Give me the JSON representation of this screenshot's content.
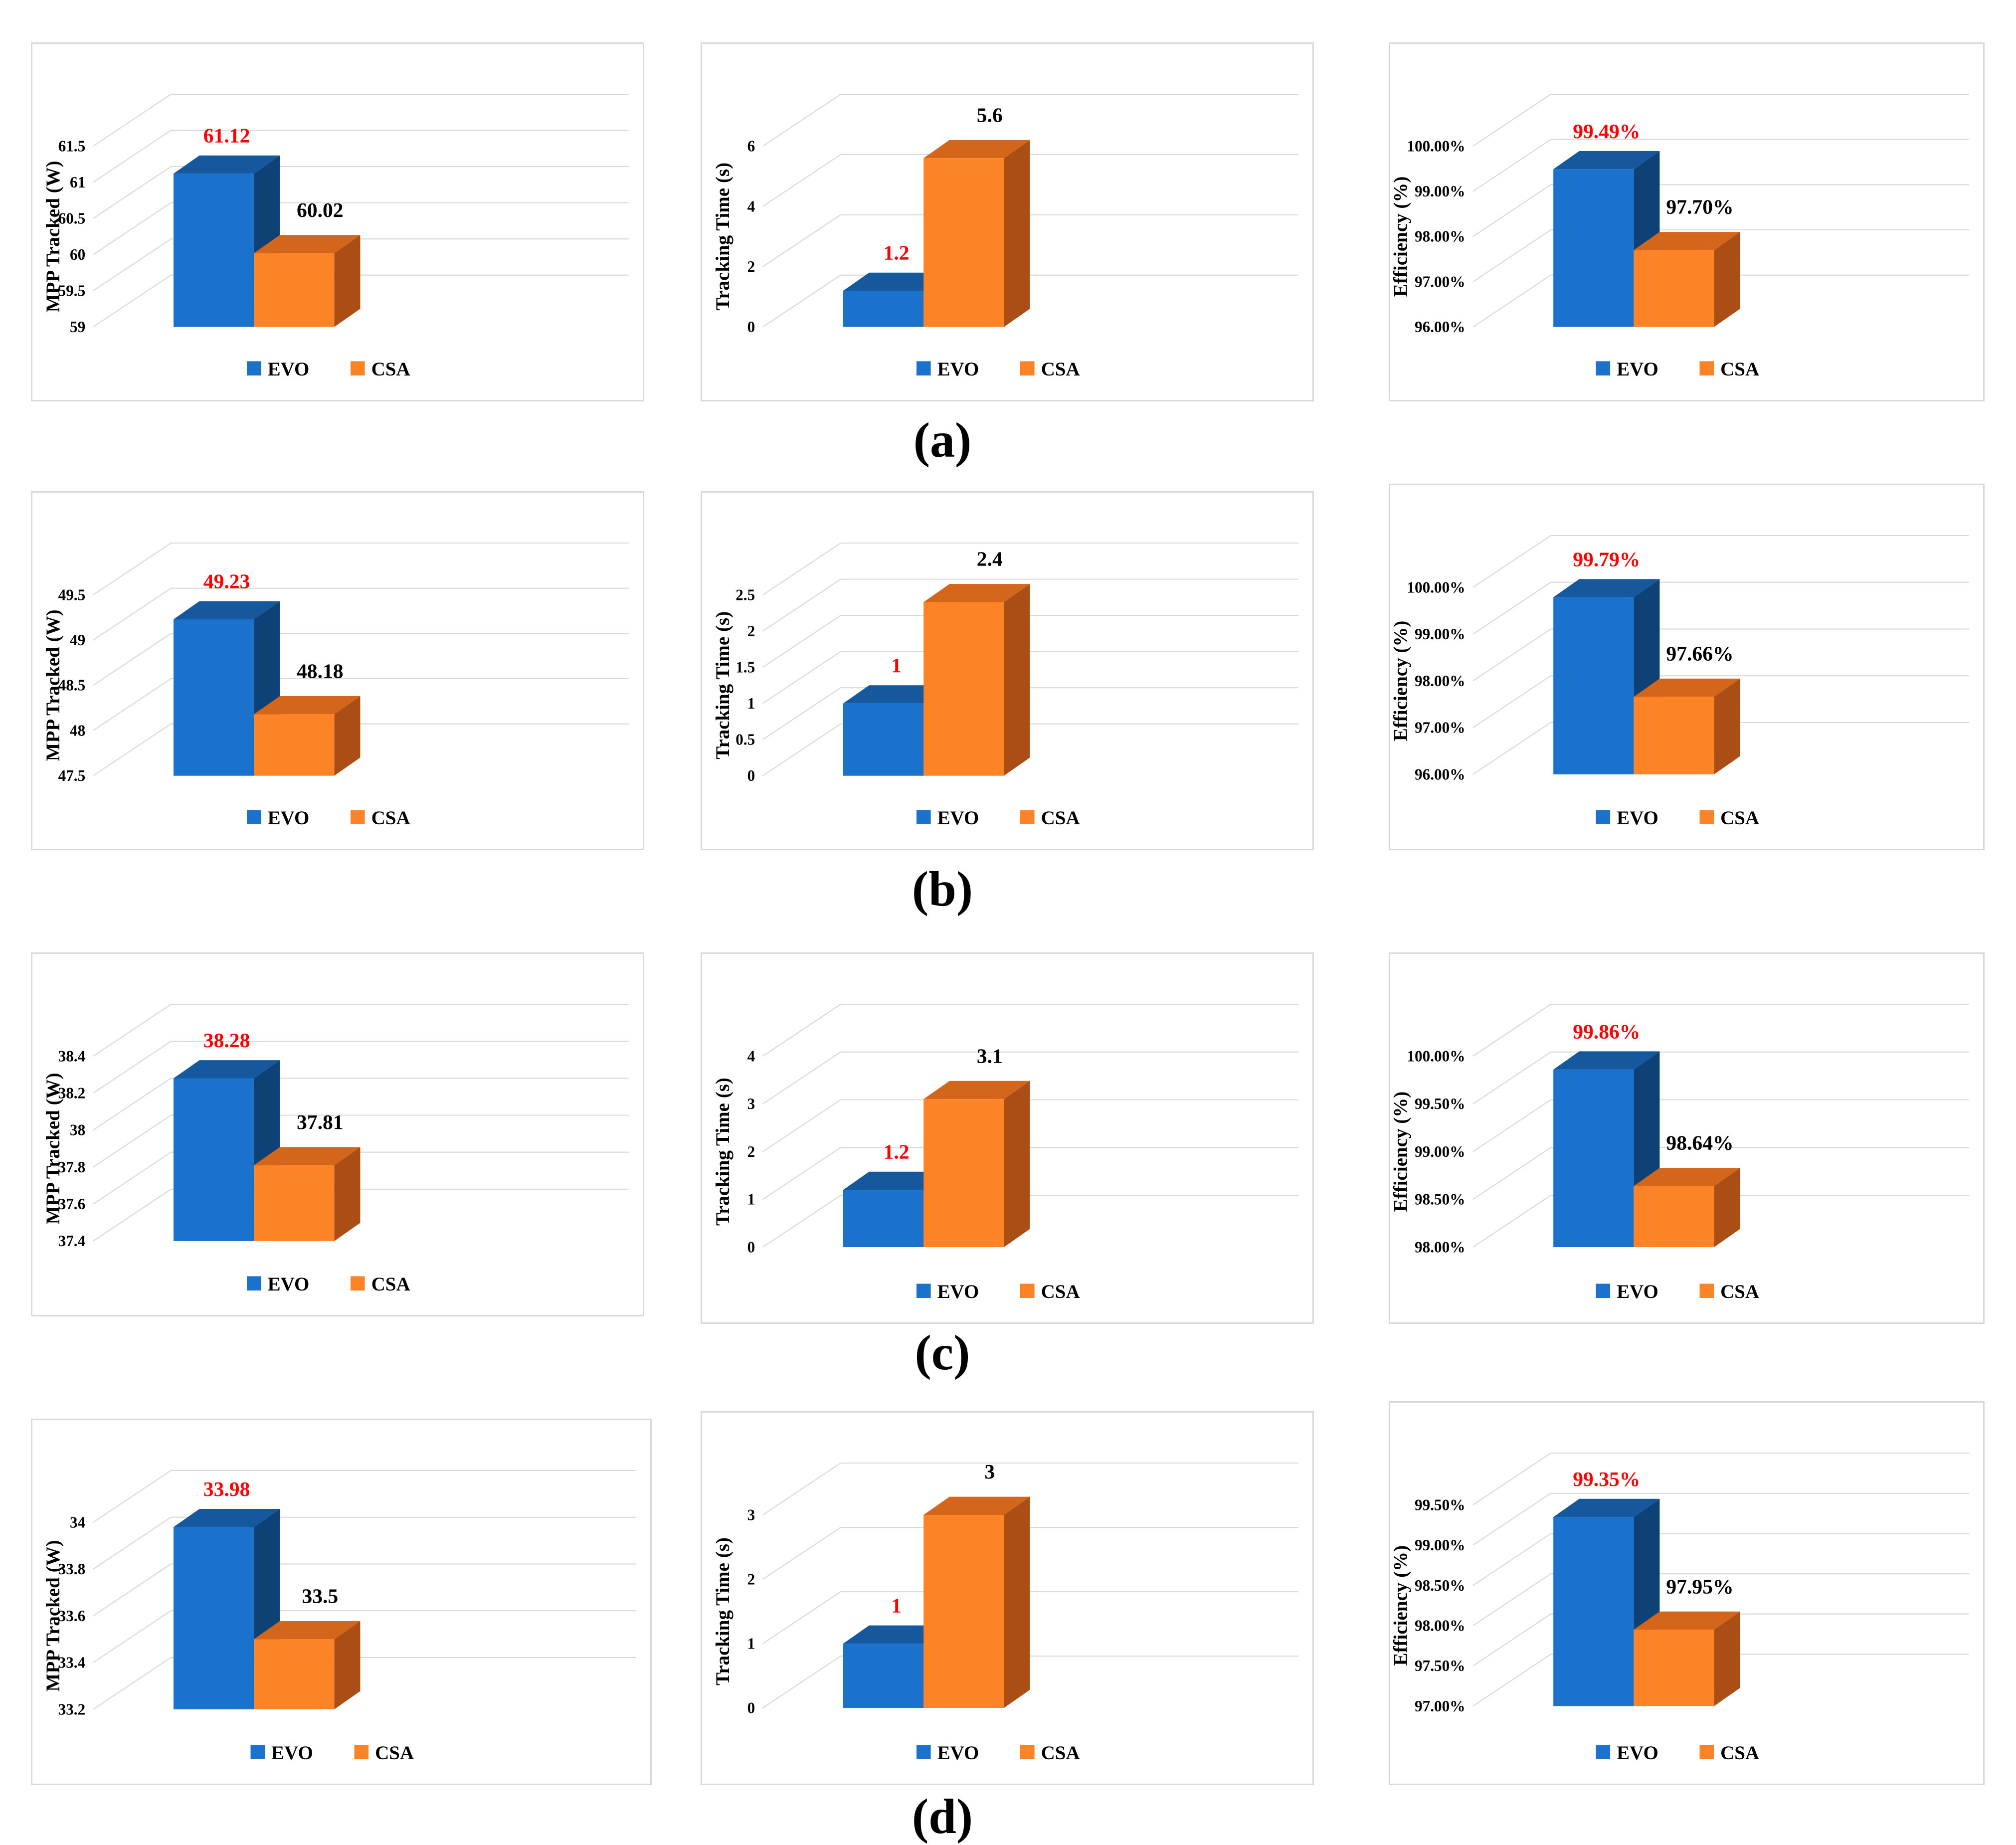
{
  "figure": {
    "row_labels": [
      "(a)",
      "(b)",
      "(c)",
      "(d)"
    ]
  },
  "colors": {
    "evo_front": "#1b72cc",
    "evo_top": "#16589e",
    "evo_side": "#0e4277",
    "csa_front": "#fd8426",
    "csa_top": "#d4661b",
    "csa_side": "#ab4e15",
    "highlight_label": "#ff0000",
    "normal_label": "#000000",
    "grid": "#d9d9d9"
  },
  "chart_data": [
    {
      "type": "bar",
      "row": "(a)",
      "ylabel": "MPP Tracked (W)",
      "categories": [
        "EVO",
        "CSA"
      ],
      "values": [
        61.12,
        60.02
      ],
      "value_labels": [
        "61.12",
        "60.02"
      ],
      "ylim": [
        59,
        61.5
      ],
      "yticks": [
        "59",
        "59.5",
        "60",
        "60.5",
        "61",
        "61.5"
      ],
      "legend": [
        "EVO",
        "CSA"
      ]
    },
    {
      "type": "bar",
      "row": "(a)",
      "ylabel": "Tracking Time  (s)",
      "categories": [
        "EVO",
        "CSA"
      ],
      "values": [
        1.2,
        5.6
      ],
      "value_labels": [
        "1.2",
        "5.6"
      ],
      "ylim": [
        0,
        6
      ],
      "yticks": [
        "0",
        "2",
        "4",
        "6"
      ],
      "legend": [
        "EVO",
        "CSA"
      ]
    },
    {
      "type": "bar",
      "row": "(a)",
      "ylabel": "Efficiency (%)",
      "categories": [
        "EVO",
        "CSA"
      ],
      "values": [
        99.49,
        97.7
      ],
      "value_labels": [
        "99.49%",
        "97.70%"
      ],
      "ylim": [
        96,
        100
      ],
      "yticks": [
        "96.00%",
        "97.00%",
        "98.00%",
        "99.00%",
        "100.00%"
      ],
      "legend": [
        "EVO",
        "CSA"
      ]
    },
    {
      "type": "bar",
      "row": "(b)",
      "ylabel": "MPP Tracked (W)",
      "categories": [
        "EVO",
        "CSA"
      ],
      "values": [
        49.23,
        48.18
      ],
      "value_labels": [
        "49.23",
        "48.18"
      ],
      "ylim": [
        47.5,
        49.5
      ],
      "yticks": [
        "47.5",
        "48",
        "48.5",
        "49",
        "49.5"
      ],
      "legend": [
        "EVO",
        "CSA"
      ]
    },
    {
      "type": "bar",
      "row": "(b)",
      "ylabel": "Tracking Time  (s)",
      "categories": [
        "EVO",
        "CSA"
      ],
      "values": [
        1,
        2.4
      ],
      "value_labels": [
        "1",
        "2.4"
      ],
      "ylim": [
        0,
        2.5
      ],
      "yticks": [
        "0",
        "0.5",
        "1",
        "1.5",
        "2",
        "2.5"
      ],
      "legend": [
        "EVO",
        "CSA"
      ]
    },
    {
      "type": "bar",
      "row": "(b)",
      "ylabel": "Efficiency (%)",
      "categories": [
        "EVO",
        "CSA"
      ],
      "values": [
        99.79,
        97.66
      ],
      "value_labels": [
        "99.79%",
        "97.66%"
      ],
      "ylim": [
        96,
        100
      ],
      "yticks": [
        "96.00%",
        "97.00%",
        "98.00%",
        "99.00%",
        "100.00%"
      ],
      "legend": [
        "EVO",
        "CSA"
      ]
    },
    {
      "type": "bar",
      "row": "(c)",
      "ylabel": "MPP Tracked (W)",
      "categories": [
        "EVO",
        "CSA"
      ],
      "values": [
        38.28,
        37.81
      ],
      "value_labels": [
        "38.28",
        "37.81"
      ],
      "ylim": [
        37.4,
        38.4
      ],
      "yticks": [
        "37.4",
        "37.6",
        "37.8",
        "38",
        "38.2",
        "38.4"
      ],
      "legend": [
        "EVO",
        "CSA"
      ]
    },
    {
      "type": "bar",
      "row": "(c)",
      "ylabel": "Tracking Time  (s)",
      "categories": [
        "EVO",
        "CSA"
      ],
      "values": [
        1.2,
        3.1
      ],
      "value_labels": [
        "1.2",
        "3.1"
      ],
      "ylim": [
        0,
        4
      ],
      "yticks": [
        "0",
        "1",
        "2",
        "3",
        "4"
      ],
      "legend": [
        "EVO",
        "CSA"
      ]
    },
    {
      "type": "bar",
      "row": "(c)",
      "ylabel": "Efficiency (%)",
      "categories": [
        "EVO",
        "CSA"
      ],
      "values": [
        99.86,
        98.64
      ],
      "value_labels": [
        "99.86%",
        "98.64%"
      ],
      "ylim": [
        98,
        100
      ],
      "yticks": [
        "98.00%",
        "98.50%",
        "99.00%",
        "99.50%",
        "100.00%"
      ],
      "legend": [
        "EVO",
        "CSA"
      ]
    },
    {
      "type": "bar",
      "row": "(d)",
      "ylabel": "MPP Tracked (W)",
      "categories": [
        "EVO",
        "CSA"
      ],
      "values": [
        33.98,
        33.5
      ],
      "value_labels": [
        "33.98",
        "33.5"
      ],
      "ylim": [
        33.2,
        34
      ],
      "yticks": [
        "33.2",
        "33.4",
        "33.6",
        "33.8",
        "34"
      ],
      "legend": [
        "EVO",
        "CSA"
      ]
    },
    {
      "type": "bar",
      "row": "(d)",
      "ylabel": "Tracking Time  (s)",
      "categories": [
        "EVO",
        "CSA"
      ],
      "values": [
        1,
        3
      ],
      "value_labels": [
        "1",
        "3"
      ],
      "ylim": [
        0,
        3
      ],
      "yticks": [
        "0",
        "1",
        "2",
        "3"
      ],
      "legend": [
        "EVO",
        "CSA"
      ]
    },
    {
      "type": "bar",
      "row": "(d)",
      "ylabel": "Efficiency (%)",
      "categories": [
        "EVO",
        "CSA"
      ],
      "values": [
        99.35,
        97.95
      ],
      "value_labels": [
        "99.35%",
        "97.95%"
      ],
      "ylim": [
        97,
        99.5
      ],
      "yticks": [
        "97.00%",
        "97.50%",
        "98.00%",
        "98.50%",
        "99.00%",
        "99.50%"
      ],
      "legend": [
        "EVO",
        "CSA"
      ]
    }
  ]
}
